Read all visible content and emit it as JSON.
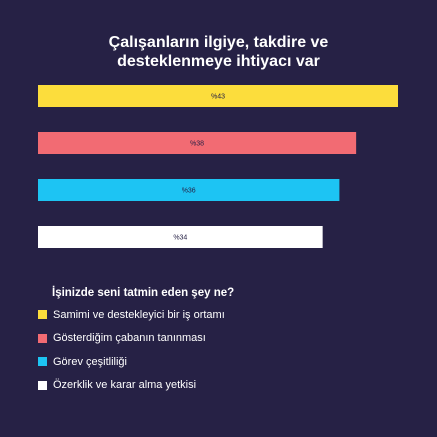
{
  "title_lines": [
    "Çalışanların ilgiye, takdire ve",
    "desteklenmeye ihtiyacı var"
  ],
  "chart_data": {
    "type": "bar",
    "orientation": "horizontal",
    "title": "Çalışanların ilgiye, takdire ve desteklenmeye ihtiyacı var",
    "xlim": [
      0,
      43
    ],
    "grid": false,
    "bars": [
      {
        "value": 43,
        "label": "%43",
        "color": "#FCDD3C"
      },
      {
        "value": 38,
        "label": "%38",
        "color": "#F26B73"
      },
      {
        "value": 36,
        "label": "%36",
        "color": "#1DC4F3"
      },
      {
        "value": 34,
        "label": "%34",
        "color": "#FFFFFF"
      }
    ]
  },
  "legend": {
    "title": "İşinizde seni tatmin eden şey ne?",
    "items": [
      {
        "label": "Samimi ve destekleyici bir iş ortamı",
        "color": "#FCDD3C"
      },
      {
        "label": "Gösterdiğim çabanın tanınması",
        "color": "#F26B73"
      },
      {
        "label": "Görev çeşitliliği",
        "color": "#1DC4F3"
      },
      {
        "label": "Özerklik ve karar alma yetkisi",
        "color": "#FFFFFF"
      }
    ]
  }
}
